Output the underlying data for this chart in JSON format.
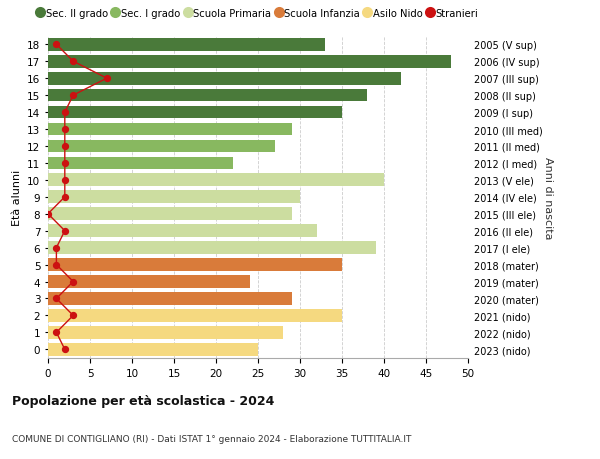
{
  "ages": [
    0,
    1,
    2,
    3,
    4,
    5,
    6,
    7,
    8,
    9,
    10,
    11,
    12,
    13,
    14,
    15,
    16,
    17,
    18
  ],
  "right_labels": [
    "2023 (nido)",
    "2022 (nido)",
    "2021 (nido)",
    "2020 (mater)",
    "2019 (mater)",
    "2018 (mater)",
    "2017 (I ele)",
    "2016 (II ele)",
    "2015 (III ele)",
    "2014 (IV ele)",
    "2013 (V ele)",
    "2012 (I med)",
    "2011 (II med)",
    "2010 (III med)",
    "2009 (I sup)",
    "2008 (II sup)",
    "2007 (III sup)",
    "2006 (IV sup)",
    "2005 (V sup)"
  ],
  "bar_values": [
    25,
    28,
    35,
    29,
    24,
    35,
    39,
    32,
    29,
    30,
    40,
    22,
    27,
    29,
    35,
    38,
    42,
    48,
    33
  ],
  "bar_colors": [
    "#f5d980",
    "#f5d980",
    "#f5d980",
    "#d97b3a",
    "#d97b3a",
    "#d97b3a",
    "#ccdda0",
    "#ccdda0",
    "#ccdda0",
    "#ccdda0",
    "#ccdda0",
    "#88b860",
    "#88b860",
    "#88b860",
    "#4a7a3a",
    "#4a7a3a",
    "#4a7a3a",
    "#4a7a3a",
    "#4a7a3a"
  ],
  "stranieri_values": [
    2,
    1,
    3,
    1,
    3,
    1,
    1,
    2,
    0,
    2,
    2,
    2,
    2,
    2,
    2,
    3,
    7,
    3,
    1
  ],
  "title": "Popolazione per età scolastica - 2024",
  "subtitle": "COMUNE DI CONTIGLIANO (RI) - Dati ISTAT 1° gennaio 2024 - Elaborazione TUTTITALIA.IT",
  "ylabel": "Età alunni",
  "right_ylabel": "Anni di nascita",
  "legend_labels": [
    "Sec. II grado",
    "Sec. I grado",
    "Scuola Primaria",
    "Scuola Infanzia",
    "Asilo Nido",
    "Stranieri"
  ],
  "legend_colors": [
    "#4a7a3a",
    "#88b860",
    "#ccdda0",
    "#d97b3a",
    "#f5d980",
    "#cc1111"
  ],
  "bg_color": "#ffffff",
  "grid_color": "#cccccc"
}
